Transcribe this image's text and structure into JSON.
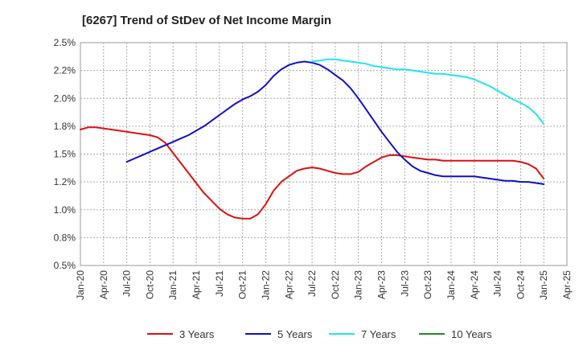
{
  "chart_data": {
    "type": "line",
    "title": "[6267]  Trend of StDev of Net Income Margin",
    "xlabel": "",
    "ylabel": "",
    "ylim": [
      0.5,
      2.5
    ],
    "grid": true,
    "legend_position": "bottom",
    "y_ticks": [
      "0.5%",
      "0.8%",
      "1.0%",
      "1.2%",
      "1.5%",
      "1.8%",
      "2.0%",
      "2.2%",
      "2.5%"
    ],
    "x_ticks": [
      "Jan-20",
      "Apr-20",
      "Jul-20",
      "Oct-20",
      "Jan-21",
      "Apr-21",
      "Jul-21",
      "Oct-21",
      "Jan-22",
      "Apr-22",
      "Jul-22",
      "Oct-22",
      "Jan-23",
      "Apr-23",
      "Jul-23",
      "Oct-23",
      "Jan-24",
      "Apr-24",
      "Jul-24",
      "Oct-24",
      "Jan-25",
      "Apr-25"
    ],
    "x_start": "Jan-20",
    "series": [
      {
        "name": "3 Years",
        "color": "#dd1111",
        "x": [
          "Jan-20",
          "Feb-20",
          "Mar-20",
          "Apr-20",
          "May-20",
          "Jun-20",
          "Jul-20",
          "Aug-20",
          "Sep-20",
          "Oct-20",
          "Nov-20",
          "Dec-20",
          "Jan-21",
          "Feb-21",
          "Mar-21",
          "Apr-21",
          "May-21",
          "Jun-21",
          "Jul-21",
          "Aug-21",
          "Sep-21",
          "Oct-21",
          "Nov-21",
          "Dec-21",
          "Jan-22",
          "Feb-22",
          "Mar-22",
          "Apr-22",
          "May-22",
          "Jun-22",
          "Jul-22",
          "Aug-22",
          "Sep-22",
          "Oct-22",
          "Nov-22",
          "Dec-22",
          "Jan-23",
          "Feb-23",
          "Mar-23",
          "Apr-23",
          "May-23",
          "Jun-23",
          "Jul-23",
          "Aug-23",
          "Sep-23",
          "Oct-23",
          "Nov-23",
          "Dec-23",
          "Jan-24",
          "Feb-24",
          "Mar-24",
          "Apr-24",
          "May-24",
          "Jun-24",
          "Jul-24",
          "Aug-24",
          "Sep-24",
          "Oct-24",
          "Nov-24",
          "Dec-24",
          "Jan-25"
        ],
        "values": [
          1.72,
          1.74,
          1.74,
          1.73,
          1.72,
          1.71,
          1.7,
          1.69,
          1.68,
          1.67,
          1.65,
          1.6,
          1.51,
          1.42,
          1.33,
          1.24,
          1.15,
          1.08,
          1.01,
          0.96,
          0.93,
          0.92,
          0.92,
          0.96,
          1.05,
          1.17,
          1.25,
          1.3,
          1.35,
          1.37,
          1.38,
          1.37,
          1.35,
          1.33,
          1.32,
          1.32,
          1.34,
          1.39,
          1.43,
          1.47,
          1.49,
          1.49,
          1.48,
          1.47,
          1.46,
          1.45,
          1.45,
          1.44,
          1.44,
          1.44,
          1.44,
          1.44,
          1.44,
          1.44,
          1.44,
          1.44,
          1.44,
          1.43,
          1.41,
          1.37,
          1.28
        ]
      },
      {
        "name": "5 Years",
        "color": "#1010c8",
        "x": [
          "Jul-20",
          "Aug-20",
          "Sep-20",
          "Oct-20",
          "Nov-20",
          "Dec-20",
          "Jan-21",
          "Feb-21",
          "Mar-21",
          "Apr-21",
          "May-21",
          "Jun-21",
          "Jul-21",
          "Aug-21",
          "Sep-21",
          "Oct-21",
          "Nov-21",
          "Dec-21",
          "Jan-22",
          "Feb-22",
          "Mar-22",
          "Apr-22",
          "May-22",
          "Jun-22",
          "Jul-22",
          "Aug-22",
          "Sep-22",
          "Oct-22",
          "Nov-22",
          "Dec-22",
          "Jan-23",
          "Feb-23",
          "Mar-23",
          "Apr-23",
          "May-23",
          "Jun-23",
          "Jul-23",
          "Aug-23",
          "Sep-23",
          "Oct-23",
          "Nov-23",
          "Dec-23",
          "Jan-24",
          "Feb-24",
          "Mar-24",
          "Apr-24",
          "May-24",
          "Jun-24",
          "Jul-24",
          "Aug-24",
          "Sep-24",
          "Oct-24",
          "Nov-24",
          "Dec-24",
          "Jan-25"
        ],
        "values": [
          1.43,
          1.46,
          1.49,
          1.52,
          1.55,
          1.58,
          1.61,
          1.64,
          1.67,
          1.71,
          1.75,
          1.8,
          1.85,
          1.9,
          1.95,
          1.99,
          2.02,
          2.06,
          2.12,
          2.2,
          2.26,
          2.3,
          2.32,
          2.33,
          2.32,
          2.3,
          2.26,
          2.21,
          2.16,
          2.09,
          2.0,
          1.9,
          1.8,
          1.7,
          1.61,
          1.52,
          1.45,
          1.39,
          1.35,
          1.33,
          1.31,
          1.3,
          1.3,
          1.3,
          1.3,
          1.3,
          1.29,
          1.28,
          1.27,
          1.26,
          1.26,
          1.25,
          1.25,
          1.24,
          1.23
        ]
      },
      {
        "name": "7 Years",
        "color": "#22e4ee",
        "x": [
          "Jul-22",
          "Aug-22",
          "Sep-22",
          "Oct-22",
          "Nov-22",
          "Dec-22",
          "Jan-23",
          "Feb-23",
          "Mar-23",
          "Apr-23",
          "May-23",
          "Jun-23",
          "Jul-23",
          "Aug-23",
          "Sep-23",
          "Oct-23",
          "Nov-23",
          "Dec-23",
          "Jan-24",
          "Feb-24",
          "Mar-24",
          "Apr-24",
          "May-24",
          "Jun-24",
          "Jul-24",
          "Aug-24",
          "Sep-24",
          "Oct-24",
          "Nov-24",
          "Dec-24",
          "Jan-25"
        ],
        "values": [
          2.33,
          2.34,
          2.35,
          2.35,
          2.34,
          2.33,
          2.32,
          2.31,
          2.29,
          2.28,
          2.27,
          2.26,
          2.26,
          2.25,
          2.24,
          2.23,
          2.22,
          2.22,
          2.21,
          2.2,
          2.19,
          2.17,
          2.14,
          2.11,
          2.07,
          2.03,
          1.99,
          1.96,
          1.92,
          1.86,
          1.77
        ]
      },
      {
        "name": "10 Years",
        "color": "#228b22",
        "x": [],
        "values": []
      }
    ]
  }
}
